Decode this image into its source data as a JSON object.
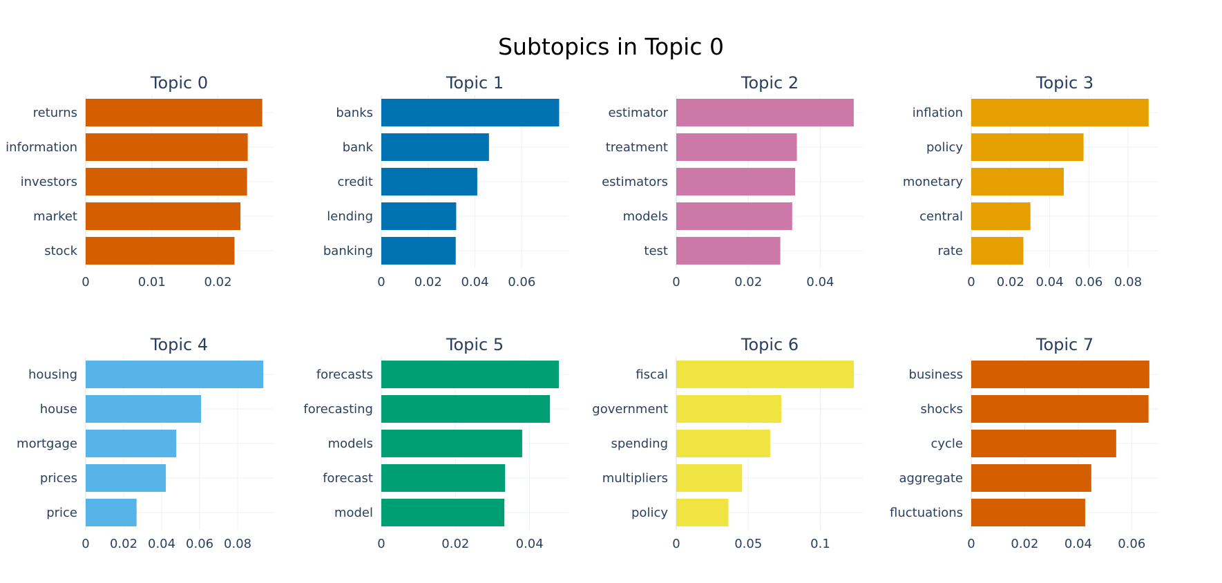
{
  "title": "Subtopics in Topic 0",
  "colors": {
    "grid": "#ebf0f8",
    "text": "#2a3f5f"
  },
  "chart_data": [
    {
      "type": "bar",
      "orientation": "horizontal",
      "title": "Topic 0",
      "color": "#D55E00",
      "categories": [
        "returns",
        "information",
        "investors",
        "market",
        "stock"
      ],
      "values": [
        0.0267,
        0.0245,
        0.0244,
        0.0234,
        0.0225
      ],
      "xlim": [
        0,
        0.0283
      ],
      "xticks": [
        0,
        0.01,
        0.02
      ],
      "xtick_labels": [
        "0",
        "0.01",
        "0.02"
      ],
      "grid": true
    },
    {
      "type": "bar",
      "orientation": "horizontal",
      "title": "Topic 1",
      "color": "#0072B2",
      "categories": [
        "banks",
        "bank",
        "credit",
        "lending",
        "banking"
      ],
      "values": [
        0.076,
        0.046,
        0.041,
        0.032,
        0.0318
      ],
      "xlim": [
        0,
        0.08
      ],
      "xticks": [
        0,
        0.02,
        0.04,
        0.06
      ],
      "xtick_labels": [
        "0",
        "0.02",
        "0.04",
        "0.06"
      ],
      "grid": true
    },
    {
      "type": "bar",
      "orientation": "horizontal",
      "title": "Topic 2",
      "color": "#CC79A7",
      "categories": [
        "estimator",
        "treatment",
        "estimators",
        "models",
        "test"
      ],
      "values": [
        0.0493,
        0.0335,
        0.033,
        0.0322,
        0.0289
      ],
      "xlim": [
        0,
        0.052
      ],
      "xticks": [
        0,
        0.02,
        0.04
      ],
      "xtick_labels": [
        "0",
        "0.02",
        "0.04"
      ],
      "grid": true
    },
    {
      "type": "bar",
      "orientation": "horizontal",
      "title": "Topic 3",
      "color": "#E69F00",
      "categories": [
        "inflation",
        "policy",
        "monetary",
        "central",
        "rate"
      ],
      "values": [
        0.0905,
        0.0573,
        0.0472,
        0.0302,
        0.0266
      ],
      "xlim": [
        0,
        0.0955
      ],
      "xticks": [
        0,
        0.02,
        0.04,
        0.06,
        0.08
      ],
      "xtick_labels": [
        "0",
        "0.02",
        "0.04",
        "0.06",
        "0.08"
      ],
      "grid": true
    },
    {
      "type": "bar",
      "orientation": "horizontal",
      "title": "Topic 4",
      "color": "#56B4E9",
      "categories": [
        "housing",
        "house",
        "mortgage",
        "prices",
        "price"
      ],
      "values": [
        0.0935,
        0.0607,
        0.0477,
        0.0422,
        0.0268
      ],
      "xlim": [
        0,
        0.0985
      ],
      "xticks": [
        0,
        0.02,
        0.04,
        0.06,
        0.08
      ],
      "xtick_labels": [
        "0",
        "0.02",
        "0.04",
        "0.06",
        "0.08"
      ],
      "grid": true
    },
    {
      "type": "bar",
      "orientation": "horizontal",
      "title": "Topic 5",
      "color": "#009E73",
      "categories": [
        "forecasts",
        "forecasting",
        "models",
        "forecast",
        "model"
      ],
      "values": [
        0.0479,
        0.0455,
        0.038,
        0.0334,
        0.0332
      ],
      "xlim": [
        0,
        0.0505
      ],
      "xticks": [
        0,
        0.02,
        0.04
      ],
      "xtick_labels": [
        "0",
        "0.02",
        "0.04"
      ],
      "grid": true
    },
    {
      "type": "bar",
      "orientation": "horizontal",
      "title": "Topic 6",
      "color": "#F0E442",
      "categories": [
        "fiscal",
        "government",
        "spending",
        "multipliers",
        "policy"
      ],
      "values": [
        0.1233,
        0.0729,
        0.0652,
        0.0457,
        0.0362
      ],
      "xlim": [
        0,
        0.13
      ],
      "xticks": [
        0,
        0.05,
        0.1
      ],
      "xtick_labels": [
        "0",
        "0.05",
        "0.1"
      ],
      "grid": true
    },
    {
      "type": "bar",
      "orientation": "horizontal",
      "title": "Topic 7",
      "color": "#D55E00",
      "categories": [
        "business",
        "shocks",
        "cycle",
        "aggregate",
        "fluctuations"
      ],
      "values": [
        0.0666,
        0.0663,
        0.0542,
        0.0449,
        0.0426
      ],
      "xlim": [
        0,
        0.07
      ],
      "xticks": [
        0,
        0.02,
        0.04,
        0.06
      ],
      "xtick_labels": [
        "0",
        "0.02",
        "0.04",
        "0.06"
      ],
      "grid": true
    }
  ]
}
